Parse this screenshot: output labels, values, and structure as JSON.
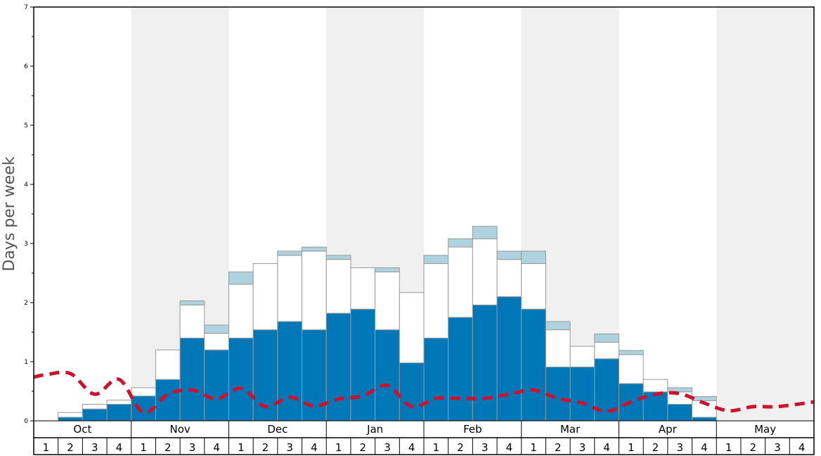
{
  "chart_data": {
    "type": "bar",
    "title": "",
    "ylabel": "Days per week",
    "xlabel": "",
    "ylim": [
      0,
      7
    ],
    "yticks": [
      0,
      1,
      2,
      3,
      4,
      5,
      6,
      7
    ],
    "months": [
      "Oct",
      "Nov",
      "Dec",
      "Jan",
      "Feb",
      "Mar",
      "Apr",
      "May"
    ],
    "week_labels": [
      "1",
      "2",
      "3",
      "4"
    ],
    "stacked": true,
    "colors": {
      "bottom": "#0077b6",
      "middle": "#ffffff",
      "top": "#aed2de",
      "line": "#d0112b",
      "shade": "#f0f0f0",
      "bar_edge": "#999999"
    },
    "series": [
      {
        "values": [
          0,
          0.06,
          0.2,
          0.28,
          0.42,
          0.7,
          1.4,
          1.2,
          1.4,
          1.54,
          1.68,
          1.54,
          1.82,
          1.89,
          1.54,
          0.98,
          1.4,
          1.75,
          1.96,
          2.1,
          1.89,
          0.91,
          0.91,
          1.05,
          0.63,
          0.49,
          0.28,
          0.06,
          0,
          0,
          0,
          0
        ]
      },
      {
        "values": [
          0,
          0.08,
          0.08,
          0.07,
          0.14,
          0.5,
          0.56,
          0.28,
          0.91,
          1.12,
          1.12,
          1.33,
          0.91,
          0.7,
          0.98,
          1.19,
          1.26,
          1.19,
          1.12,
          0.63,
          0.77,
          0.63,
          0.35,
          0.28,
          0.49,
          0.21,
          0.21,
          0.28,
          0,
          0,
          0,
          0
        ]
      },
      {
        "values": [
          0,
          0,
          0,
          0,
          0,
          0,
          0.07,
          0.14,
          0.21,
          0,
          0.07,
          0.07,
          0.07,
          0,
          0.07,
          0,
          0.14,
          0.14,
          0.21,
          0.14,
          0.21,
          0.14,
          0,
          0.14,
          0.07,
          0,
          0.07,
          0.07,
          0,
          0,
          0,
          0
        ]
      }
    ],
    "line": {
      "style": "dashed",
      "values": [
        0.74,
        0.78,
        0.8,
        0.45,
        0.7,
        0.14,
        0.45,
        0.52,
        0.37,
        0.55,
        0.24,
        0.4,
        0.25,
        0.37,
        0.42,
        0.6,
        0.24,
        0.38,
        0.38,
        0.38,
        0.45,
        0.52,
        0.38,
        0.3,
        0.16,
        0.32,
        0.45,
        0.46,
        0.3,
        0.17,
        0.24,
        0.24,
        0.32
      ]
    }
  }
}
